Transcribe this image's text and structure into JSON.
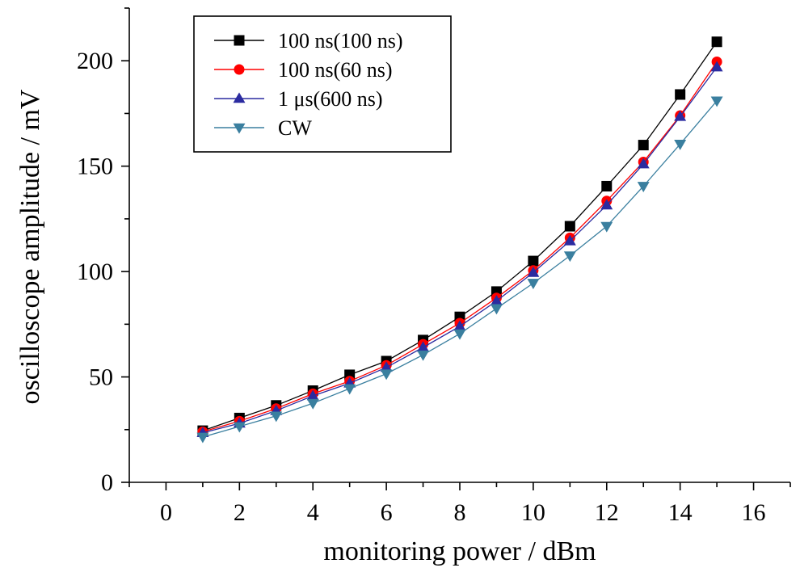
{
  "chart_data": {
    "type": "line",
    "xlabel": "monitoring power / dBm",
    "ylabel": "oscilloscope amplitude / mV",
    "xlim": [
      -1,
      17
    ],
    "ylim": [
      0,
      225
    ],
    "xticks": [
      0,
      2,
      4,
      6,
      8,
      10,
      12,
      14,
      16
    ],
    "yticks": [
      0,
      50,
      100,
      150,
      200
    ],
    "x": [
      1,
      2,
      3,
      4,
      5,
      6,
      7,
      8,
      9,
      10,
      11,
      12,
      13,
      14,
      15
    ],
    "grid": false,
    "legend_position": "top-left",
    "series": [
      {
        "name": "100 ns(100 ns)",
        "color": "#000000",
        "marker": "square",
        "values": [
          24.5,
          30.5,
          36.5,
          43.5,
          51,
          57.5,
          67.5,
          78.5,
          90.5,
          105,
          121.5,
          140.5,
          160,
          184,
          209
        ]
      },
      {
        "name": "100 ns(60 ns)",
        "color": "#ff0000",
        "marker": "circle",
        "values": [
          24,
          29,
          35,
          42,
          48,
          55.5,
          65.5,
          75.5,
          87.5,
          100.5,
          116,
          133.5,
          152,
          174,
          199.5
        ]
      },
      {
        "name": "1 μs(600 ns)",
        "color": "#2b2ba0",
        "marker": "triangle-up",
        "values": [
          23.5,
          28,
          34,
          41,
          47,
          54.5,
          64,
          74,
          86,
          99.5,
          114.5,
          131.5,
          151,
          173.5,
          197
        ]
      },
      {
        "name": "CW",
        "color": "#3a7f9f",
        "marker": "triangle-down",
        "values": [
          21.5,
          26.5,
          31.5,
          37.5,
          44.5,
          51.5,
          60.5,
          70.5,
          82.5,
          94.5,
          107.5,
          121.5,
          140.5,
          160.5,
          181
        ]
      }
    ]
  }
}
